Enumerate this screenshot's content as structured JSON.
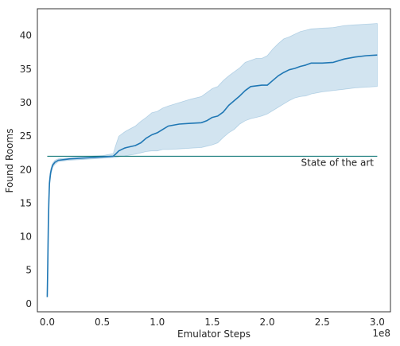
{
  "chart_data": {
    "type": "line",
    "title": "",
    "xlabel": "Emulator Steps",
    "ylabel": "Found Rooms",
    "x_offset_label": "1e8",
    "xlim": [
      -0.09,
      3.12
    ],
    "ylim": [
      -1.2,
      44.0
    ],
    "x_ticks": [
      0.0,
      0.5,
      1.0,
      1.5,
      2.0,
      2.5,
      3.0
    ],
    "x_tick_labels": [
      "0.0",
      "0.5",
      "1.0",
      "1.5",
      "2.0",
      "2.5",
      "3.0"
    ],
    "y_ticks": [
      0,
      5,
      10,
      15,
      20,
      25,
      30,
      35,
      40
    ],
    "y_tick_labels": [
      "0",
      "5",
      "10",
      "15",
      "20",
      "25",
      "30",
      "35",
      "40"
    ],
    "grid": false,
    "colors": {
      "line": "#1f77b4",
      "band": "#1f77b4",
      "reference": "#167a7a",
      "frame": "#333333"
    },
    "series": [
      {
        "x": [
          0.0,
          0.005,
          0.01,
          0.015,
          0.02,
          0.03,
          0.04,
          0.05,
          0.07,
          0.1,
          0.15,
          0.2,
          0.3,
          0.4,
          0.5,
          0.6,
          0.62,
          0.65,
          0.7,
          0.72,
          0.8,
          0.85,
          0.9,
          0.95,
          1.0,
          1.05,
          1.1,
          1.2,
          1.3,
          1.4,
          1.45,
          1.5,
          1.55,
          1.6,
          1.65,
          1.7,
          1.75,
          1.8,
          1.85,
          1.9,
          1.95,
          2.0,
          2.05,
          2.1,
          2.15,
          2.2,
          2.25,
          2.3,
          2.35,
          2.4,
          2.5,
          2.6,
          2.7,
          2.8,
          2.9,
          3.0
        ],
        "values": [
          1.0,
          6.0,
          12.0,
          15.5,
          18.0,
          19.5,
          20.2,
          20.7,
          21.1,
          21.4,
          21.5,
          21.6,
          21.7,
          21.8,
          21.9,
          22.0,
          22.3,
          22.8,
          23.2,
          23.3,
          23.6,
          24.0,
          24.7,
          25.2,
          25.5,
          26.0,
          26.5,
          26.8,
          26.9,
          27.0,
          27.3,
          27.8,
          28.0,
          28.6,
          29.6,
          30.3,
          31.0,
          31.8,
          32.4,
          32.5,
          32.6,
          32.6,
          33.3,
          34.0,
          34.5,
          34.9,
          35.1,
          35.4,
          35.6,
          35.9,
          35.9,
          36.0,
          36.5,
          36.8,
          37.0,
          37.1
        ],
        "upper": [
          1.0,
          8.0,
          13.0,
          16.5,
          18.8,
          20.0,
          20.6,
          21.0,
          21.4,
          21.6,
          21.7,
          21.8,
          21.9,
          22.0,
          22.1,
          22.4,
          23.5,
          25.0,
          25.6,
          25.8,
          26.5,
          27.2,
          27.8,
          28.5,
          28.7,
          29.2,
          29.5,
          30.0,
          30.5,
          30.9,
          31.5,
          32.1,
          32.4,
          33.3,
          34.0,
          34.6,
          35.2,
          36.0,
          36.3,
          36.6,
          36.6,
          37.0,
          38.0,
          38.8,
          39.5,
          39.8,
          40.2,
          40.6,
          40.8,
          41.0,
          41.1,
          41.2,
          41.5,
          41.6,
          41.7,
          41.8
        ],
        "lower": [
          1.0,
          5.0,
          11.0,
          14.5,
          17.2,
          19.0,
          19.8,
          20.4,
          20.8,
          21.2,
          21.3,
          21.4,
          21.5,
          21.6,
          21.7,
          21.8,
          21.8,
          21.9,
          22.0,
          22.1,
          22.3,
          22.5,
          22.7,
          22.8,
          22.8,
          23.0,
          23.0,
          23.1,
          23.2,
          23.3,
          23.5,
          23.7,
          24.0,
          24.8,
          25.5,
          26.0,
          26.8,
          27.3,
          27.6,
          27.8,
          28.0,
          28.3,
          28.8,
          29.3,
          29.8,
          30.3,
          30.7,
          30.9,
          31.0,
          31.3,
          31.6,
          31.8,
          32.0,
          32.2,
          32.3,
          32.4
        ]
      }
    ],
    "reference_line": {
      "y": 22.0,
      "x_start": 0.0,
      "x_end": 3.0,
      "label": "State of the art"
    }
  }
}
